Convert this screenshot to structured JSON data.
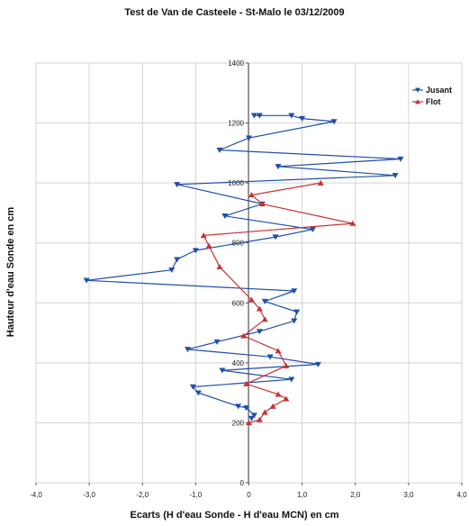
{
  "chart_data": {
    "type": "line",
    "title": "Test de Van de Casteele - St-Malo le 03/12/2009",
    "xlabel": "Ecarts (H d'eau Sonde - H d'eau MCN) en cm",
    "ylabel": "Hauteur d'eau Sonde en cm",
    "xlim": [
      -4,
      4
    ],
    "ylim": [
      0,
      1400
    ],
    "x_ticks": [
      "-4,0",
      "-3,0",
      "-2,0",
      "-1,0",
      "0",
      "1,0",
      "2,0",
      "3,0",
      "4,0"
    ],
    "y_ticks": [
      "0",
      "200",
      "400",
      "600",
      "800",
      "1000",
      "1200",
      "1400"
    ],
    "grid": true,
    "legend_position": "top-right",
    "series": [
      {
        "name": "Jusant",
        "color": "#1f4fa8",
        "marker": "triangle-down",
        "points": [
          {
            "x": 0.1,
            "y": 1225
          },
          {
            "x": 0.2,
            "y": 1225
          },
          {
            "x": 0.8,
            "y": 1225
          },
          {
            "x": 1.0,
            "y": 1215
          },
          {
            "x": 1.6,
            "y": 1205
          },
          {
            "x": 0.0,
            "y": 1150
          },
          {
            "x": -0.55,
            "y": 1110
          },
          {
            "x": 2.85,
            "y": 1080
          },
          {
            "x": 0.55,
            "y": 1055
          },
          {
            "x": 2.75,
            "y": 1025
          },
          {
            "x": -1.35,
            "y": 995
          },
          {
            "x": 0.25,
            "y": 930
          },
          {
            "x": -0.45,
            "y": 890
          },
          {
            "x": 1.2,
            "y": 845
          },
          {
            "x": 0.5,
            "y": 820
          },
          {
            "x": -1.0,
            "y": 775
          },
          {
            "x": -1.35,
            "y": 745
          },
          {
            "x": -1.45,
            "y": 710
          },
          {
            "x": -3.05,
            "y": 675
          },
          {
            "x": 0.85,
            "y": 640
          },
          {
            "x": 0.3,
            "y": 605
          },
          {
            "x": 0.9,
            "y": 570
          },
          {
            "x": 0.85,
            "y": 540
          },
          {
            "x": 0.2,
            "y": 505
          },
          {
            "x": -0.6,
            "y": 470
          },
          {
            "x": -1.15,
            "y": 445
          },
          {
            "x": 0.4,
            "y": 420
          },
          {
            "x": 1.3,
            "y": 395
          },
          {
            "x": -0.5,
            "y": 375
          },
          {
            "x": 0.8,
            "y": 345
          },
          {
            "x": -1.05,
            "y": 320
          },
          {
            "x": -0.95,
            "y": 300
          },
          {
            "x": -0.2,
            "y": 255
          },
          {
            "x": -0.05,
            "y": 250
          },
          {
            "x": 0.1,
            "y": 225
          },
          {
            "x": 0.05,
            "y": 215
          }
        ]
      },
      {
        "name": "Flot",
        "color": "#c83232",
        "marker": "triangle-up",
        "points": [
          {
            "x": 0.0,
            "y": 200
          },
          {
            "x": 0.2,
            "y": 210
          },
          {
            "x": 0.3,
            "y": 235
          },
          {
            "x": 0.45,
            "y": 255
          },
          {
            "x": 0.7,
            "y": 280
          },
          {
            "x": 0.55,
            "y": 295
          },
          {
            "x": -0.05,
            "y": 330
          },
          {
            "x": 0.7,
            "y": 390
          },
          {
            "x": 0.55,
            "y": 440
          },
          {
            "x": -0.1,
            "y": 490
          },
          {
            "x": 0.3,
            "y": 545
          },
          {
            "x": 0.2,
            "y": 580
          },
          {
            "x": 0.05,
            "y": 610
          },
          {
            "x": -0.55,
            "y": 720
          },
          {
            "x": -0.75,
            "y": 790
          },
          {
            "x": -0.85,
            "y": 825
          },
          {
            "x": 1.95,
            "y": 865
          },
          {
            "x": 0.25,
            "y": 930
          },
          {
            "x": 0.05,
            "y": 960
          },
          {
            "x": 1.35,
            "y": 1000
          }
        ]
      }
    ]
  }
}
